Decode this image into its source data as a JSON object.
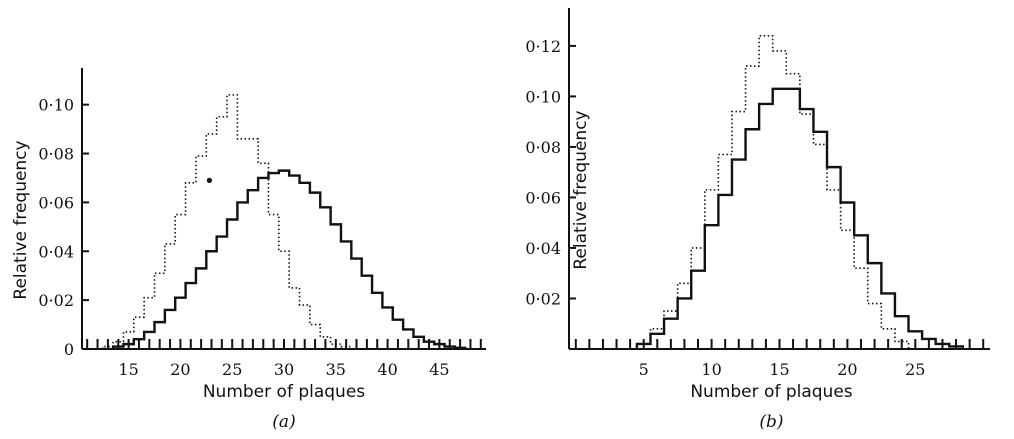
{
  "chart_data": [
    {
      "type": "line",
      "step": true,
      "panel_label": "(a)",
      "xlabel": "Number of plaques",
      "ylabel": "Relative frequency",
      "xlim": [
        10.5,
        49.5
      ],
      "ylim": [
        0,
        0.115
      ],
      "xticks": [
        15,
        20,
        25,
        30,
        35,
        40,
        45
      ],
      "yticks": [
        0,
        0.02,
        0.04,
        0.06,
        0.08,
        0.1
      ],
      "ytick_labels": [
        "0",
        "0·02",
        "0·04",
        "0·06",
        "0·08",
        "0·10"
      ],
      "grid": false,
      "series": [
        {
          "style": "solid",
          "x": [
            14,
            15,
            16,
            17,
            18,
            19,
            20,
            21,
            22,
            23,
            24,
            25,
            26,
            27,
            28,
            29,
            30,
            31,
            32,
            33,
            34,
            35,
            36,
            37,
            38,
            39,
            40,
            41,
            42,
            43,
            44,
            45,
            46,
            47
          ],
          "values": [
            0.001,
            0.002,
            0.004,
            0.007,
            0.011,
            0.016,
            0.021,
            0.027,
            0.033,
            0.04,
            0.046,
            0.053,
            0.06,
            0.065,
            0.07,
            0.072,
            0.073,
            0.071,
            0.068,
            0.064,
            0.058,
            0.051,
            0.044,
            0.037,
            0.03,
            0.023,
            0.017,
            0.012,
            0.008,
            0.005,
            0.003,
            0.002,
            0.001,
            0.0005
          ]
        },
        {
          "style": "dotted",
          "x": [
            13,
            14,
            15,
            16,
            17,
            18,
            19,
            20,
            21,
            22,
            23,
            24,
            25,
            26,
            27,
            28,
            29,
            30,
            31,
            32,
            33,
            34,
            35,
            36
          ],
          "values": [
            0.001,
            0.003,
            0.007,
            0.013,
            0.021,
            0.031,
            0.043,
            0.055,
            0.068,
            0.079,
            0.088,
            0.095,
            0.104,
            0.086,
            0.086,
            0.076,
            0.055,
            0.04,
            0.025,
            0.018,
            0.01,
            0.005,
            0.002,
            0.001
          ]
        }
      ],
      "marker_point": {
        "x": 22.8,
        "y": 0.069
      }
    },
    {
      "type": "line",
      "step": true,
      "panel_label": "(b)",
      "xlabel": "Number of plaques",
      "ylabel": "Relative frequency",
      "xlim": [
        -0.5,
        30.5
      ],
      "ylim": [
        0,
        0.135
      ],
      "xticks": [
        5,
        10,
        15,
        20,
        25
      ],
      "yticks": [
        0.02,
        0.04,
        0.06,
        0.08,
        0.1,
        0.12
      ],
      "ytick_labels": [
        "0·02",
        "0·04",
        "0·06",
        "0·08",
        "0·10",
        "0·12"
      ],
      "grid": false,
      "series": [
        {
          "style": "solid",
          "x": [
            5,
            6,
            7,
            8,
            9,
            10,
            11,
            12,
            13,
            14,
            15,
            16,
            17,
            18,
            19,
            20,
            21,
            22,
            23,
            24,
            25,
            26,
            27,
            28
          ],
          "values": [
            0.002,
            0.006,
            0.012,
            0.02,
            0.031,
            0.049,
            0.061,
            0.075,
            0.087,
            0.097,
            0.103,
            0.103,
            0.095,
            0.086,
            0.072,
            0.058,
            0.045,
            0.034,
            0.022,
            0.013,
            0.007,
            0.004,
            0.002,
            0.001
          ]
        },
        {
          "style": "dotted",
          "x": [
            5,
            6,
            7,
            8,
            9,
            10,
            11,
            12,
            13,
            14,
            15,
            16,
            17,
            18,
            19,
            20,
            21,
            22,
            23,
            24
          ],
          "values": [
            0.002,
            0.008,
            0.015,
            0.026,
            0.04,
            0.063,
            0.077,
            0.094,
            0.112,
            0.124,
            0.118,
            0.109,
            0.093,
            0.081,
            0.063,
            0.047,
            0.032,
            0.018,
            0.008,
            0.003
          ]
        }
      ]
    }
  ]
}
